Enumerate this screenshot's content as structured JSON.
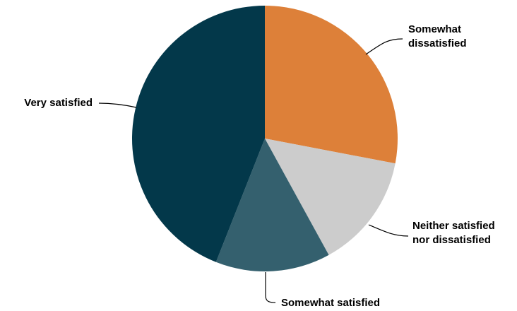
{
  "chart_data": {
    "type": "pie",
    "title": "",
    "start_angle_deg": 0,
    "direction": "clockwise",
    "slices": [
      {
        "label": "Somewhat dissatisfied",
        "label_lines": [
          "Somewhat",
          "dissatisfied"
        ],
        "value": 28,
        "color": "#dd8039"
      },
      {
        "label": "Neither satisfied nor dissatisfied",
        "label_lines": [
          "Neither satisfied",
          "nor dissatisfied"
        ],
        "value": 14,
        "color": "#cccccc"
      },
      {
        "label": "Somewhat satisfied",
        "label_lines": [
          "Somewhat satisfied"
        ],
        "value": 14,
        "color": "#34606e"
      },
      {
        "label": "Very satisfied",
        "label_lines": [
          "Very satisfied"
        ],
        "value": 44,
        "color": "#03384a"
      }
    ],
    "legend": "none",
    "labels": "outside-with-leader-lines"
  }
}
